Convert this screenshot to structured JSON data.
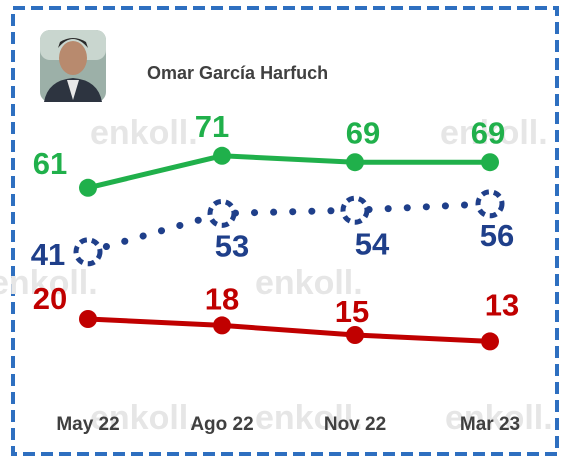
{
  "chart_data": {
    "type": "line",
    "subtitle": "Omar García Harfuch",
    "watermark": "enkoll.",
    "categories": [
      "May 22",
      "Ago 22",
      "Nov 22",
      "Mar 23"
    ],
    "series": [
      {
        "color": "#20b04b",
        "values": [
          61,
          71,
          69,
          69
        ]
      },
      {
        "color": "#1f3f8a",
        "values": [
          41,
          53,
          54,
          56
        ],
        "style": "dotted"
      },
      {
        "color": "#c00000",
        "values": [
          20,
          18,
          15,
          13
        ]
      }
    ],
    "ylim": [
      0,
      100
    ]
  }
}
